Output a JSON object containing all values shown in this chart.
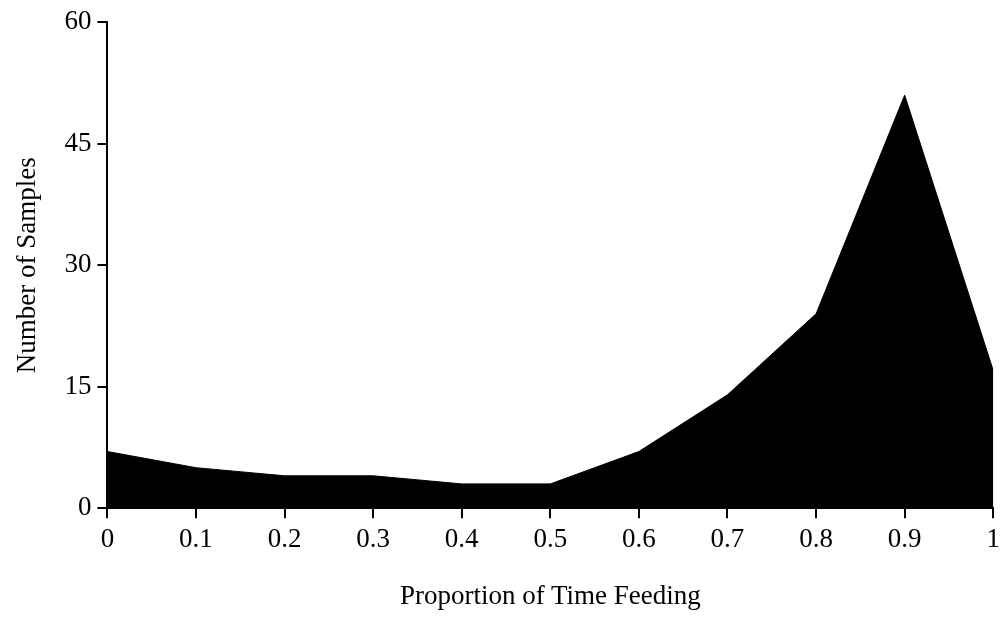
{
  "chart_data": {
    "type": "area",
    "xlabel": "Proportion of Time Feeding",
    "ylabel": "Number of Samples",
    "x": [
      0,
      0.1,
      0.2,
      0.3,
      0.4,
      0.5,
      0.6,
      0.7,
      0.8,
      0.9,
      1
    ],
    "series": [
      {
        "color": "#000000",
        "values": [
          7,
          5,
          4,
          4,
          3,
          3,
          7,
          14,
          24,
          51,
          17
        ]
      }
    ],
    "xlim": [
      0,
      1
    ],
    "xticks": [
      0,
      0.1,
      0.2,
      0.3,
      0.4,
      0.5,
      0.6,
      0.7,
      0.8,
      0.9,
      1
    ],
    "ylim": [
      0,
      60
    ],
    "yticks": [
      0,
      15,
      30,
      45,
      60
    ],
    "grid": false,
    "legend": false
  }
}
